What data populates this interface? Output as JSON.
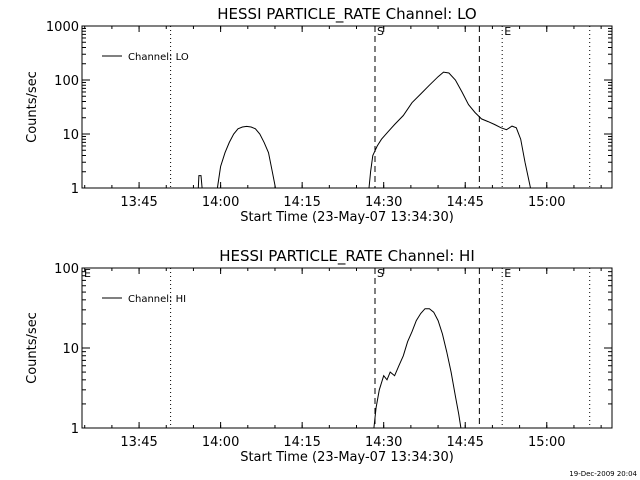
{
  "footer": {
    "timestamp": "19-Dec-2009 20:04"
  },
  "chart_data": [
    {
      "type": "line",
      "title": "HESSI PARTICLE_RATE Channel: LO",
      "xlabel": "Start Time (23-May-07 13:34:30)",
      "ylabel": "Counts/sec",
      "x_range": [
        "13:34:30",
        "15:12:00"
      ],
      "xticks": [
        "13:45",
        "14:00",
        "14:15",
        "14:30",
        "14:45",
        "15:00"
      ],
      "yscale": "log",
      "ylim": [
        1,
        1000
      ],
      "yticks": [
        "1",
        "10",
        "100",
        "1000"
      ],
      "legend": {
        "position": "top-left",
        "entries": [
          "Channel: LO"
        ]
      },
      "series": [
        {
          "name": "Channel: LO",
          "segments": [
            {
              "x": [
                "13:55:54",
                "13:56:00",
                "13:56:24",
                "13:56:36"
              ],
              "y": [
                1,
                1.7,
                1.7,
                1
              ]
            },
            {
              "x": [
                "13:59:24",
                "14:00:00",
                "14:00:48",
                "14:01:36",
                "14:02:24",
                "14:03:12",
                "14:04:00",
                "14:04:48",
                "14:05:36",
                "14:06:24",
                "14:07:12",
                "14:08:00",
                "14:08:48",
                "14:09:30",
                "14:10:06"
              ],
              "y": [
                1,
                2.5,
                4.5,
                7,
                10,
                12.5,
                13.5,
                13.8,
                13.5,
                12.5,
                10,
                7,
                4.5,
                2,
                1
              ]
            },
            {
              "x": [
                "14:27:18",
                "14:27:36",
                "14:28:00",
                "14:28:48",
                "14:29:36",
                "14:30:48",
                "14:32:00",
                "14:33:36",
                "14:35:12",
                "14:36:48",
                "14:38:24",
                "14:40:00",
                "14:41:00",
                "14:42:00",
                "14:43:12",
                "14:44:24",
                "14:45:36",
                "14:46:48",
                "14:48:00",
                "14:49:12",
                "14:50:24",
                "14:51:36",
                "14:52:36",
                "14:53:36",
                "14:54:24",
                "14:55:12",
                "14:56:00",
                "14:57:00"
              ],
              "y": [
                1,
                2,
                4,
                6,
                8,
                11,
                15,
                22,
                38,
                55,
                80,
                115,
                140,
                135,
                100,
                60,
                35,
                25,
                19,
                17,
                15,
                13,
                12,
                14,
                13,
                8,
                3,
                1
              ]
            }
          ]
        }
      ],
      "annotations": [
        {
          "text": "S",
          "x": "14:28:24",
          "style": "dashed"
        },
        {
          "text": "E",
          "x": "14:51:48",
          "style": "dotted"
        },
        {
          "text": "",
          "x": "14:47:36",
          "style": "dashed"
        },
        {
          "text": "",
          "x": "13:50:48",
          "style": "dotted"
        },
        {
          "text": "",
          "x": "15:07:54",
          "style": "dotted"
        }
      ]
    },
    {
      "type": "line",
      "title": "HESSI PARTICLE_RATE Channel: HI",
      "xlabel": "Start Time (23-May-07 13:34:30)",
      "ylabel": "Counts/sec",
      "x_range": [
        "13:34:30",
        "15:12:00"
      ],
      "xticks": [
        "13:45",
        "14:00",
        "14:15",
        "14:30",
        "14:45",
        "15:00"
      ],
      "yscale": "log",
      "ylim": [
        1,
        100
      ],
      "yticks": [
        "1",
        "10",
        "100"
      ],
      "legend": {
        "position": "top-left",
        "entries": [
          "Channel: HI"
        ]
      },
      "series": [
        {
          "name": "Channel: HI",
          "segments": [
            {
              "x": [
                "14:28:12",
                "14:28:36",
                "14:29:12",
                "14:30:00",
                "14:30:36",
                "14:31:12",
                "14:32:00",
                "14:32:48",
                "14:33:36",
                "14:34:24",
                "14:35:12",
                "14:36:00",
                "14:36:48",
                "14:37:36",
                "14:38:24",
                "14:39:12",
                "14:40:00",
                "14:40:48",
                "14:41:36",
                "14:42:24",
                "14:43:12",
                "14:43:48",
                "14:44:12"
              ],
              "y": [
                1,
                1.8,
                3,
                4.5,
                4,
                5,
                4.5,
                6,
                8,
                12,
                16,
                22,
                27,
                31,
                31,
                28,
                22,
                15,
                9,
                5,
                2.5,
                1.5,
                1
              ]
            }
          ]
        }
      ],
      "annotations": [
        {
          "text": "E",
          "x": "13:34:30",
          "style": "none"
        },
        {
          "text": "S",
          "x": "14:28:24",
          "style": "dashed"
        },
        {
          "text": "E",
          "x": "14:51:48",
          "style": "dotted"
        },
        {
          "text": "",
          "x": "14:47:36",
          "style": "dashed"
        },
        {
          "text": "",
          "x": "13:50:48",
          "style": "dotted"
        },
        {
          "text": "",
          "x": "15:07:54",
          "style": "dotted"
        }
      ]
    }
  ]
}
